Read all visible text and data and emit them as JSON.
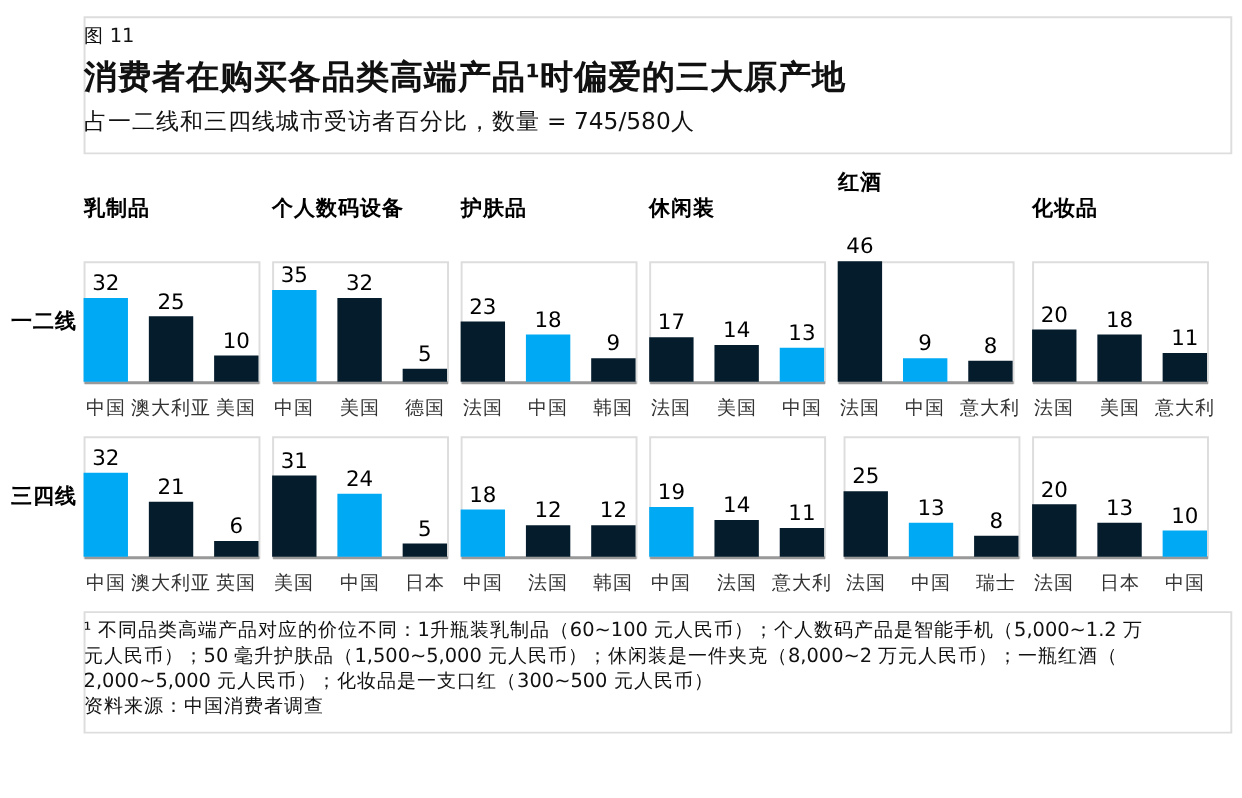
{
  "chart_data": [
    {
      "type": "other",
      "title": "消费者在购买各品类高端产品¹时偏爱的三大原产地",
      "subtitle": "占一二线和三四线城市受访者百分比，数量 = 745/580人",
      "annotations": [
        "图 11"
      ]
    },
    {
      "type": "bar",
      "title": "乳制品",
      "ylabel": "一二线",
      "categories": [
        "中国",
        "澳大利亚",
        "美国"
      ],
      "values": [
        32,
        25,
        10
      ],
      "colors": [
        "#00a9f4",
        "#051c2c",
        "#051c2c"
      ],
      "data_labels": true
    },
    {
      "type": "bar",
      "title": "个人数码设备",
      "categories": [
        "中国",
        "美国",
        "德国"
      ],
      "values": [
        35,
        32,
        5
      ],
      "colors": [
        "#00a9f4",
        "#051c2c",
        "#051c2c"
      ],
      "data_labels": true
    },
    {
      "type": "bar",
      "title": "护肤品",
      "categories": [
        "法国",
        "中国",
        "韩国"
      ],
      "values": [
        23,
        18,
        9
      ],
      "colors": [
        "#051c2c",
        "#00a9f4",
        "#051c2c"
      ],
      "data_labels": true
    },
    {
      "type": "bar",
      "title": "休闲装",
      "categories": [
        "法国",
        "美国",
        "中国"
      ],
      "values": [
        17,
        14,
        13
      ],
      "colors": [
        "#051c2c",
        "#051c2c",
        "#00a9f4"
      ],
      "data_labels": true
    },
    {
      "type": "bar",
      "title": "红酒",
      "categories": [
        "法国",
        "中国",
        "意大利"
      ],
      "values": [
        46,
        9,
        8
      ],
      "colors": [
        "#051c2c",
        "#00a9f4",
        "#051c2c"
      ],
      "data_labels": true
    },
    {
      "type": "bar",
      "title": "化妆品",
      "categories": [
        "法国",
        "美国",
        "意大利"
      ],
      "values": [
        20,
        18,
        11
      ],
      "colors": [
        "#051c2c",
        "#051c2c",
        "#051c2c"
      ],
      "data_labels": true
    },
    {
      "type": "bar",
      "ylabel": "三四线",
      "categories": [
        "中国",
        "澳大利亚",
        "英国"
      ],
      "values": [
        32,
        21,
        6
      ],
      "colors": [
        "#00a9f4",
        "#051c2c",
        "#051c2c"
      ],
      "data_labels": true
    },
    {
      "type": "bar",
      "categories": [
        "美国",
        "中国",
        "日本"
      ],
      "values": [
        31,
        24,
        5
      ],
      "colors": [
        "#051c2c",
        "#00a9f4",
        "#051c2c"
      ],
      "data_labels": true
    },
    {
      "type": "bar",
      "categories": [
        "中国",
        "法国",
        "韩国"
      ],
      "values": [
        18,
        12,
        12
      ],
      "colors": [
        "#00a9f4",
        "#051c2c",
        "#051c2c"
      ],
      "data_labels": true
    },
    {
      "type": "bar",
      "categories": [
        "中国",
        "法国",
        "意大利"
      ],
      "values": [
        19,
        14,
        11
      ],
      "colors": [
        "#00a9f4",
        "#051c2c",
        "#051c2c"
      ],
      "data_labels": true
    },
    {
      "type": "bar",
      "categories": [
        "法国",
        "中国",
        "瑞士"
      ],
      "values": [
        25,
        13,
        8
      ],
      "colors": [
        "#051c2c",
        "#00a9f4",
        "#051c2c"
      ],
      "data_labels": true
    },
    {
      "type": "bar",
      "categories": [
        "法国",
        "日本",
        "中国"
      ],
      "values": [
        20,
        13,
        10
      ],
      "colors": [
        "#051c2c",
        "#051c2c",
        "#00a9f4"
      ],
      "data_labels": true
    },
    {
      "type": "other",
      "annotations": [
        "¹ 不同品类高端产品对应的价位不同：1升瓶装乳制品（60~100 元人民币）；个人数码产品是智能手机（5,000~1.2 万元人民币）；50 毫升护肤品（1,500~5,000 元人民币）；休闲装是一件夹克（8,000~2 万元人民币）；一瓶红酒（2,000~5,000 元人民币）；化妆品是一支口红（300~500 元人民币）",
        "资料来源：中国消费者调查"
      ]
    }
  ]
}
